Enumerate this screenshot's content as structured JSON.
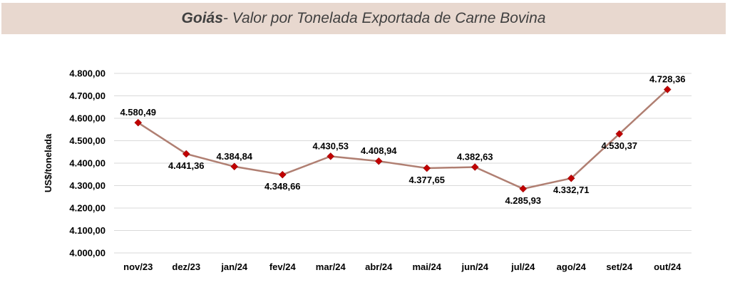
{
  "header": {
    "title_strong": "Goiás",
    "title_rest": " - Valor por Tonelada Exportada de Carne Bovina"
  },
  "chart_data": {
    "type": "line",
    "title": "Goiás - Valor por Tonelada Exportada de Carne Bovina",
    "xlabel": "",
    "ylabel": "US$/tonelada",
    "categories": [
      "nov/23",
      "dez/23",
      "jan/24",
      "fev/24",
      "mar/24",
      "abr/24",
      "mai/24",
      "jun/24",
      "jul/24",
      "ago/24",
      "set/24",
      "out/24"
    ],
    "values": [
      4580.49,
      4441.36,
      4384.84,
      4348.66,
      4430.53,
      4408.94,
      4377.65,
      4382.63,
      4285.93,
      4332.71,
      4530.37,
      4728.36
    ],
    "value_labels": [
      "4.580,49",
      "4.441,36",
      "4.384,84",
      "4.348,66",
      "4.430,53",
      "4.408,94",
      "4.377,65",
      "4.382,63",
      "4.285,93",
      "4.332,71",
      "4.530,37",
      "4.728,36"
    ],
    "label_positions": [
      "above",
      "below",
      "above",
      "below",
      "above",
      "above",
      "below",
      "above",
      "below",
      "below",
      "below",
      "above"
    ],
    "ylim": [
      4000,
      4800
    ],
    "yticks": [
      4000,
      4100,
      4200,
      4300,
      4400,
      4500,
      4600,
      4700,
      4800
    ],
    "ytick_labels": [
      "4.000,00",
      "4.100,00",
      "4.200,00",
      "4.300,00",
      "4.400,00",
      "4.500,00",
      "4.600,00",
      "4.700,00",
      "4.800,00"
    ],
    "grid": true,
    "line_color": "#b07f72",
    "marker_color": "#c00000",
    "grid_color": "#d9d9d9"
  }
}
